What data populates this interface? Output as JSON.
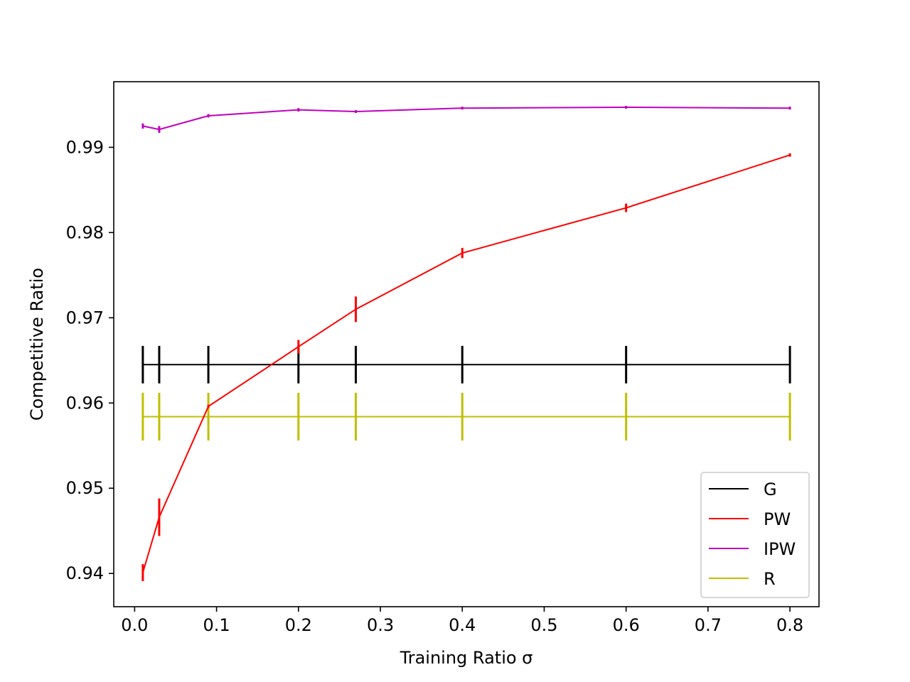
{
  "chart_data": {
    "type": "line",
    "title": "",
    "xlabel": "Training Ratio σ",
    "ylabel": "Competitive Ratio",
    "xlim": [
      -0.0255,
      0.8355
    ],
    "ylim": [
      0.9361,
      0.9977
    ],
    "xticks": [
      "0.0",
      "0.1",
      "0.2",
      "0.3",
      "0.4",
      "0.5",
      "0.6",
      "0.7",
      "0.8"
    ],
    "yticks": [
      "0.94",
      "0.95",
      "0.96",
      "0.97",
      "0.98",
      "0.99"
    ],
    "x": [
      0.01,
      0.03,
      0.09,
      0.2,
      0.27,
      0.4,
      0.6,
      0.8
    ],
    "grid": false,
    "legend_position": "lower right",
    "series": [
      {
        "name": "G",
        "color": "#000000",
        "values": [
          0.9645,
          0.9645,
          0.9645,
          0.9645,
          0.9645,
          0.9645,
          0.9645,
          0.9645
        ],
        "errors": [
          0.0022,
          0.0022,
          0.0022,
          0.0022,
          0.0022,
          0.0022,
          0.0022,
          0.0022
        ]
      },
      {
        "name": "PW",
        "color": "#ff0000",
        "values": [
          0.9401,
          0.9466,
          0.9596,
          0.9666,
          0.971,
          0.9776,
          0.9829,
          0.9891
        ],
        "errors": [
          0.001,
          0.0022,
          0.0002,
          0.0008,
          0.0015,
          0.0006,
          0.0005,
          0.0002
        ]
      },
      {
        "name": "IPW",
        "color": "#bf00bf",
        "values": [
          0.9925,
          0.9921,
          0.9937,
          0.9944,
          0.9942,
          0.9946,
          0.9947,
          0.9946
        ],
        "errors": [
          0.0003,
          0.0004,
          0.0002,
          0.0002,
          0.0001,
          0.0001,
          0.0,
          0.0
        ]
      },
      {
        "name": "R",
        "color": "#bfbf00",
        "values": [
          0.9584,
          0.9584,
          0.9584,
          0.9584,
          0.9584,
          0.9584,
          0.9584,
          0.9584
        ],
        "errors": [
          0.0028,
          0.0028,
          0.0028,
          0.0028,
          0.0028,
          0.0028,
          0.0028,
          0.0028
        ]
      }
    ]
  }
}
